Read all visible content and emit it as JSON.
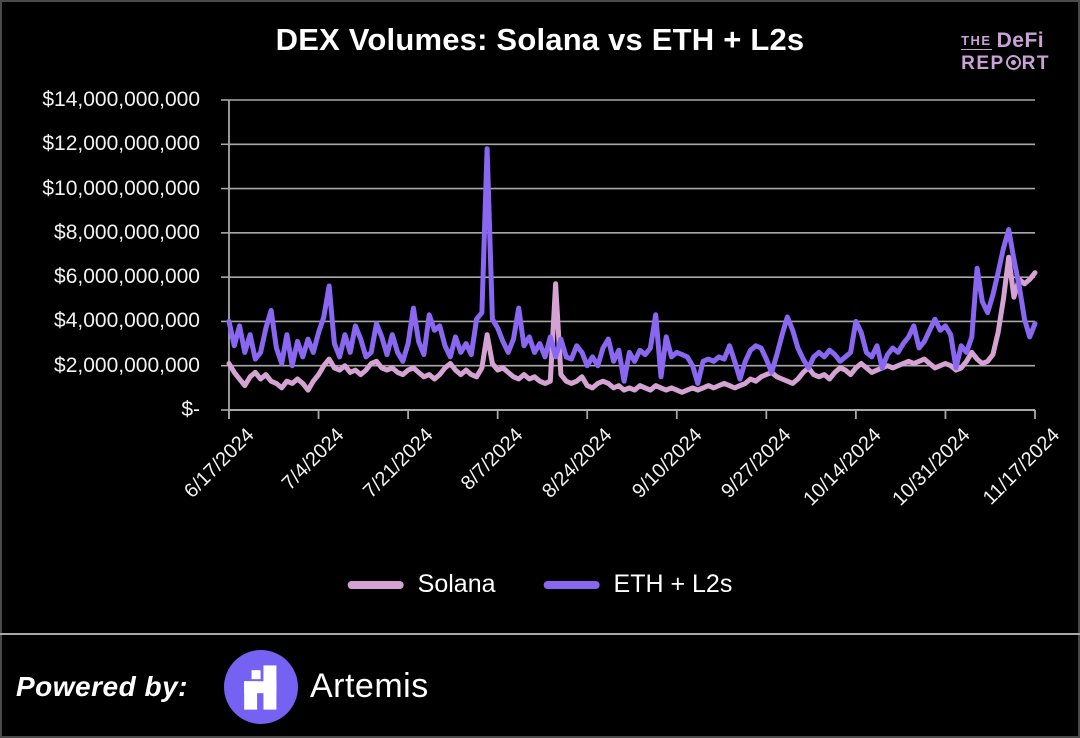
{
  "title": "DEX Volumes: Solana vs ETH + L2s",
  "brand_logo": {
    "the": "THE",
    "defi": "DeFi",
    "rep": "REP",
    "rt": "RT",
    "color": "#c9a3d8"
  },
  "chart_data": {
    "type": "line",
    "title": "DEX Volumes: Solana vs ETH + L2s",
    "unit": "USD (values in billions)",
    "grid": true,
    "legend_position": "bottom",
    "y_axis": {
      "tick_labels": [
        "$-",
        "$2,000,000,000",
        "$4,000,000,000",
        "$6,000,000,000",
        "$8,000,000,000",
        "$10,000,000,000",
        "$12,000,000,000",
        "$14,000,000,000"
      ],
      "tick_values_billions": [
        0,
        2,
        4,
        6,
        8,
        10,
        12,
        14
      ],
      "range_billions": [
        0,
        14
      ]
    },
    "x_axis": {
      "tick_labels": [
        "6/17/2024",
        "7/4/2024",
        "7/21/2024",
        "8/7/2024",
        "8/24/2024",
        "9/10/2024",
        "9/27/2024",
        "10/14/2024",
        "10/31/2024",
        "11/17/2024"
      ],
      "start_date": "6/17/2024",
      "end_date": "11/17/2024",
      "tick_interval_days": 17,
      "points_per_series": 154
    },
    "series": [
      {
        "name": "Solana",
        "color": "#d5a3d3",
        "values_billions": [
          2.1,
          1.7,
          1.4,
          1.1,
          1.5,
          1.7,
          1.4,
          1.6,
          1.3,
          1.2,
          1.0,
          1.3,
          1.2,
          1.4,
          1.2,
          0.9,
          1.3,
          1.6,
          2.0,
          2.3,
          1.9,
          1.8,
          2.0,
          1.7,
          1.8,
          1.6,
          1.8,
          2.1,
          2.2,
          1.9,
          1.8,
          1.9,
          1.7,
          1.6,
          1.8,
          1.9,
          1.7,
          1.5,
          1.6,
          1.4,
          1.6,
          1.9,
          2.1,
          1.8,
          1.6,
          1.8,
          1.6,
          1.5,
          1.9,
          3.4,
          2.1,
          1.8,
          1.9,
          1.7,
          1.5,
          1.4,
          1.6,
          1.4,
          1.5,
          1.3,
          1.2,
          1.3,
          5.7,
          1.6,
          1.3,
          1.2,
          1.3,
          1.5,
          1.1,
          1.0,
          1.2,
          1.3,
          1.2,
          1.0,
          1.1,
          0.9,
          1.0,
          0.9,
          1.1,
          1.0,
          0.9,
          1.1,
          1.0,
          0.9,
          1.0,
          0.9,
          0.8,
          0.9,
          1.0,
          0.9,
          1.0,
          1.1,
          1.0,
          1.1,
          1.2,
          1.1,
          1.0,
          1.1,
          1.2,
          1.4,
          1.3,
          1.5,
          1.6,
          1.7,
          1.5,
          1.4,
          1.3,
          1.2,
          1.4,
          1.7,
          1.9,
          1.6,
          1.5,
          1.6,
          1.4,
          1.7,
          1.9,
          1.8,
          1.6,
          1.9,
          2.1,
          1.9,
          1.7,
          1.8,
          1.9,
          2.0,
          1.9,
          2.0,
          2.1,
          2.2,
          2.1,
          2.2,
          2.3,
          2.1,
          1.9,
          2.0,
          2.1,
          2.0,
          1.8,
          1.9,
          2.2,
          2.6,
          2.3,
          2.1,
          2.2,
          2.5,
          3.5,
          5.0,
          6.9,
          5.1,
          5.9,
          5.7,
          5.9,
          6.2
        ]
      },
      {
        "name": "ETH + L2s",
        "color": "#8a67f1",
        "values_billions": [
          4.0,
          2.9,
          3.8,
          2.6,
          3.4,
          2.3,
          2.6,
          3.7,
          4.5,
          2.8,
          2.1,
          3.4,
          2.0,
          3.1,
          2.4,
          3.2,
          2.6,
          3.5,
          4.2,
          5.6,
          3.0,
          2.4,
          3.4,
          2.6,
          3.8,
          3.2,
          2.4,
          2.6,
          3.9,
          3.3,
          2.5,
          3.4,
          2.6,
          2.2,
          3.0,
          4.6,
          3.1,
          2.5,
          4.3,
          3.6,
          3.8,
          2.9,
          2.4,
          3.3,
          2.6,
          3.0,
          2.5,
          4.1,
          4.4,
          11.8,
          4.1,
          3.7,
          3.1,
          2.6,
          3.2,
          4.6,
          2.9,
          3.3,
          2.6,
          3.0,
          2.4,
          3.3,
          2.4,
          3.2,
          2.4,
          2.3,
          2.9,
          2.6,
          2.0,
          2.4,
          2.0,
          2.8,
          3.2,
          2.2,
          2.7,
          1.3,
          2.6,
          2.2,
          2.7,
          2.5,
          2.8,
          4.3,
          1.5,
          3.3,
          2.4,
          2.6,
          2.5,
          2.4,
          2.0,
          1.2,
          2.2,
          2.3,
          2.2,
          2.4,
          2.3,
          2.9,
          2.2,
          1.4,
          2.2,
          2.7,
          2.9,
          2.8,
          2.3,
          1.7,
          2.5,
          3.4,
          4.2,
          3.6,
          2.8,
          2.3,
          1.9,
          2.4,
          2.6,
          2.4,
          2.7,
          2.5,
          2.2,
          2.4,
          2.6,
          4.0,
          3.5,
          2.6,
          2.4,
          2.9,
          1.9,
          2.5,
          2.8,
          2.6,
          3.0,
          3.3,
          3.8,
          2.8,
          3.1,
          3.6,
          4.1,
          3.6,
          3.8,
          3.4,
          1.9,
          2.9,
          2.6,
          3.3,
          6.4,
          4.9,
          4.4,
          5.2,
          6.2,
          7.3,
          8.15,
          6.8,
          5.6,
          4.1,
          3.3,
          3.9
        ]
      }
    ]
  },
  "footer": {
    "powered_by": "Powered by:",
    "brand": "Artemis",
    "logo_color": "#7561f2"
  },
  "style": {
    "background": "#000000",
    "gridline_color": "#a8a8a8",
    "text_color": "#f2f2f2"
  }
}
